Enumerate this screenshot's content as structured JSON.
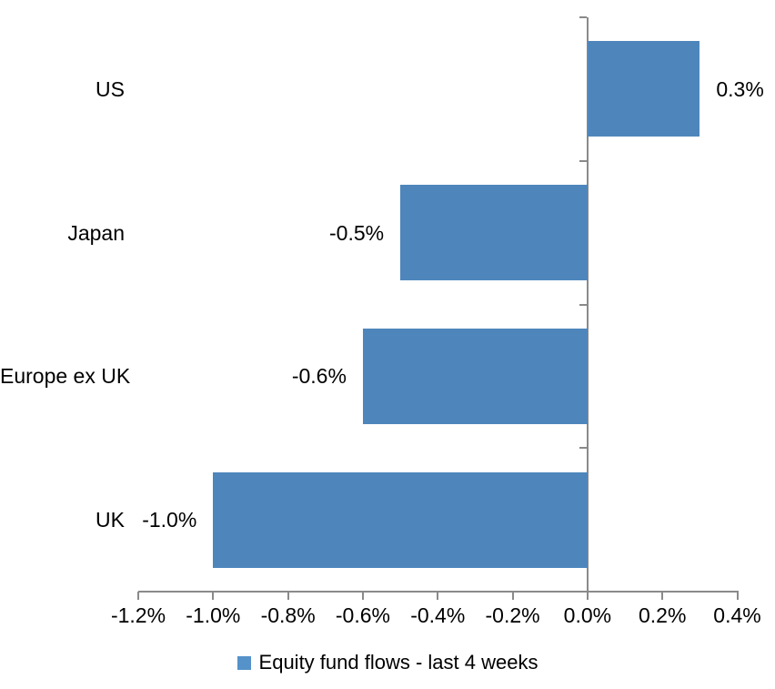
{
  "chart_data": {
    "type": "bar",
    "orientation": "horizontal",
    "categories": [
      "US",
      "Japan",
      "Europe ex UK",
      "UK"
    ],
    "values": [
      0.3,
      -0.5,
      -0.6,
      -1.0
    ],
    "value_labels": [
      "0.3%",
      "-0.5%",
      "-0.6%",
      "-1.0%"
    ],
    "x_axis": {
      "min": -1.2,
      "max": 0.4,
      "tick_step": 0.2,
      "tick_labels": [
        "-1.2%",
        "-1.0%",
        "-0.8%",
        "-0.6%",
        "-0.4%",
        "-0.2%",
        "0.0%",
        "0.2%",
        "0.4%"
      ]
    },
    "legend": [
      {
        "label": "Equity fund flows - last 4 weeks",
        "color": "#5592ca"
      }
    ],
    "legend_position": "bottom",
    "grid": false,
    "bar_color": "#4e86bc",
    "axis_color": "#8a8a8a",
    "text_color": "#000000"
  }
}
